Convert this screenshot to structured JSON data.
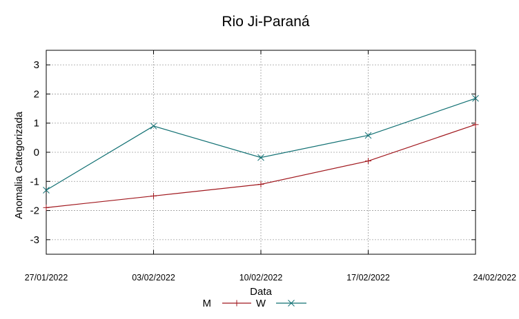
{
  "chart_data": {
    "type": "line",
    "title": "Rio Ji-Paraná",
    "xlabel": "Data",
    "ylabel": "Anomalia Categorizada",
    "categories": [
      "27/01/2022",
      "03/02/2022",
      "10/02/2022",
      "17/02/2022",
      "24/02/2022"
    ],
    "ylim": [
      -3.5,
      3.5
    ],
    "yticks": [
      "-3",
      "-2",
      "-1",
      "0",
      "1",
      "2",
      "3"
    ],
    "grid": true,
    "legend_position": "bottom-center",
    "series": [
      {
        "name": "M",
        "color": "#a0161c",
        "marker": "plus",
        "values": [
          -1.9,
          -1.5,
          -1.1,
          -0.3,
          0.95
        ]
      },
      {
        "name": "W",
        "color": "#0f6f72",
        "marker": "cross",
        "values": [
          -1.3,
          0.9,
          -0.18,
          0.58,
          1.85
        ]
      }
    ]
  }
}
